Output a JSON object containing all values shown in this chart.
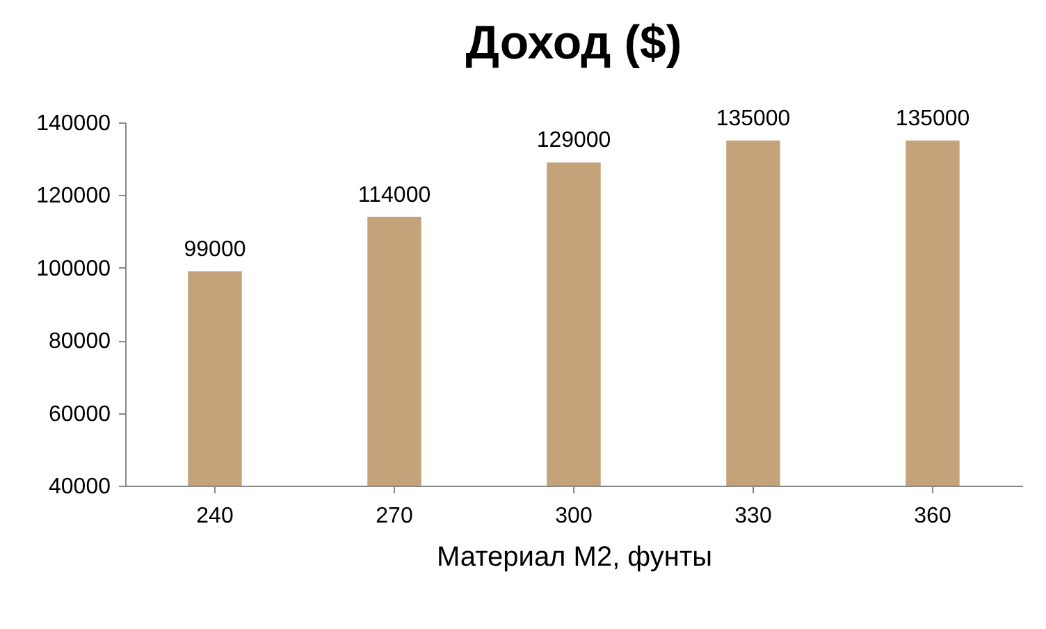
{
  "chart_data": {
    "type": "bar",
    "title": "Доход ($)",
    "xlabel": "Материал М2, фунты",
    "categories": [
      "240",
      "270",
      "300",
      "330",
      "360"
    ],
    "values": [
      99000,
      114000,
      129000,
      135000,
      135000
    ],
    "color": "#c4a27a",
    "ylim": [
      40000,
      140000
    ],
    "yticks": [
      40000,
      60000,
      80000,
      100000,
      120000,
      140000
    ],
    "data_labels": true,
    "grid": false
  }
}
